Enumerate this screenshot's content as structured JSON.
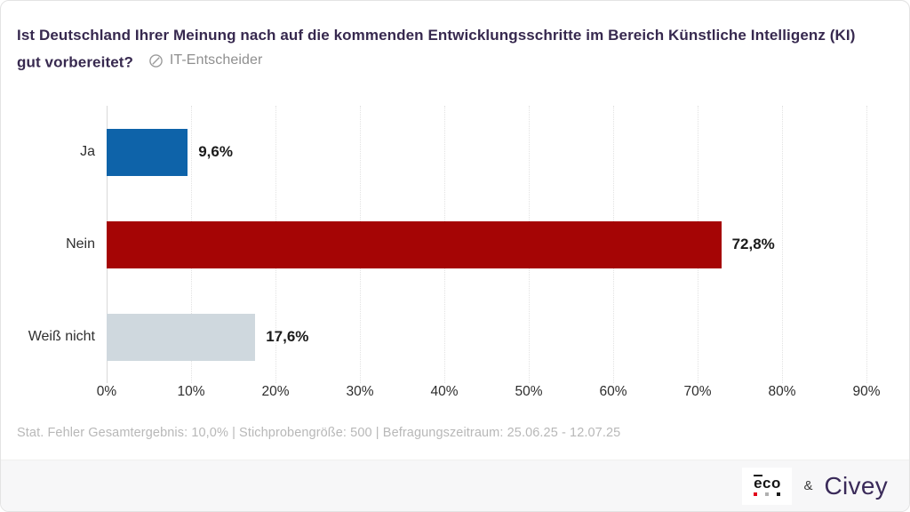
{
  "header": {
    "title": "Ist Deutschland Ihrer Meinung nach auf die kommenden Entwicklungsschritte im Bereich Künstliche Intelligenz (KI) gut vorbereitet?",
    "audience_label": "IT-Entscheider"
  },
  "chart_data": {
    "type": "bar",
    "orientation": "horizontal",
    "categories": [
      "Ja",
      "Nein",
      "Weiß nicht"
    ],
    "values": [
      9.6,
      72.8,
      17.6
    ],
    "value_labels": [
      "9,6%",
      "72,8%",
      "17,6%"
    ],
    "bar_colors": [
      "#0e63a9",
      "#a50505",
      "#cfd8de"
    ],
    "x_ticks": [
      "0%",
      "10%",
      "20%",
      "30%",
      "40%",
      "50%",
      "60%",
      "70%",
      "80%",
      "90%"
    ],
    "xlim": [
      0,
      90
    ],
    "grid": "vertical-dotted",
    "legend": "none"
  },
  "footer": {
    "note": "Stat. Fehler Gesamtergebnis: 10,0% | Stichprobengröße: 500 | Befragungszeitraum: 25.06.25 - 12.07.25"
  },
  "branding": {
    "partner_logo_text": "eco",
    "partner_dot_colors": [
      "#e2001a",
      "#b0b0b0",
      "#1a1a1a"
    ],
    "ampersand": "&",
    "brand_logo_text": "Civey",
    "brand_color": "#3a2a59"
  }
}
